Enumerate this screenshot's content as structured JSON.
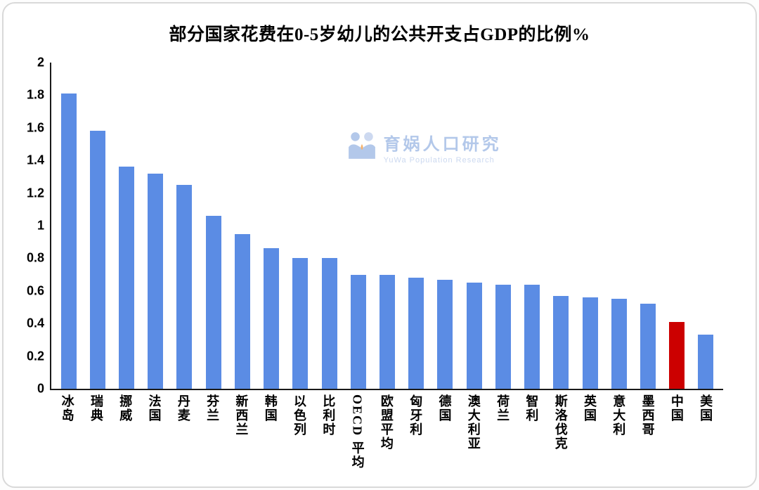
{
  "chart_data": {
    "type": "bar",
    "title": "部分国家花费在0-5岁幼儿的公共开支占GDP的比例%",
    "categories": [
      "冰岛",
      "瑞典",
      "挪威",
      "法国",
      "丹麦",
      "芬兰",
      "新西兰",
      "韩国",
      "以色列",
      "比利时",
      "OECD 平均",
      "欧盟平均",
      "匈牙利",
      "德国",
      "澳大利亚",
      "荷兰",
      "智利",
      "斯洛伐克",
      "英国",
      "意大利",
      "墨西哥",
      "中国",
      "美国"
    ],
    "values": [
      1.81,
      1.58,
      1.36,
      1.32,
      1.25,
      1.06,
      0.95,
      0.86,
      0.8,
      0.8,
      0.7,
      0.7,
      0.68,
      0.67,
      0.65,
      0.64,
      0.64,
      0.57,
      0.56,
      0.55,
      0.52,
      0.41,
      0.33
    ],
    "ylim": [
      0,
      2
    ],
    "ytick_labels": [
      "0",
      "0.2",
      "0.4",
      "0.6",
      "0.8",
      "1",
      "1.2",
      "1.4",
      "1.6",
      "1.8",
      "2"
    ],
    "grid": false,
    "legend": "none",
    "bar_color": "#5b8ce4",
    "highlight_color": "#cc0000",
    "highlight_index": 21,
    "xlabel": "",
    "ylabel": ""
  },
  "watermark": {
    "name": "育娲人口研究",
    "subtitle": "YuWa Population Research",
    "logo_icon": "yuwa-people-logo-icon",
    "color": "#b3c8ea"
  }
}
